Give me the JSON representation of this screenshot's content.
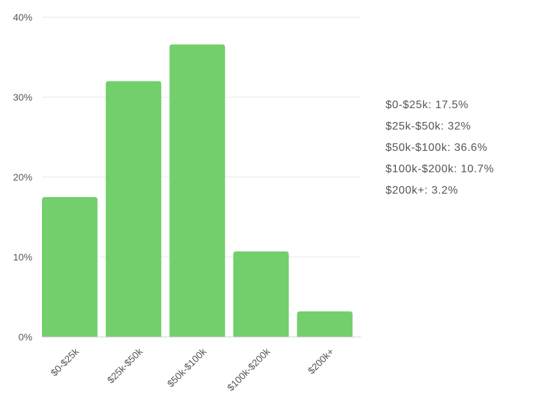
{
  "chart_data": {
    "type": "bar",
    "categories": [
      "$0-$25k",
      "$25k-$50k",
      "$50k-$100k",
      "$100k-$200k",
      "$200k+"
    ],
    "values": [
      17.5,
      32,
      36.6,
      10.7,
      3.2
    ],
    "ylim": [
      0,
      40
    ],
    "yticks": [
      "0%",
      "10%",
      "20%",
      "30%",
      "40%"
    ],
    "ytick_values": [
      0,
      10,
      20,
      30,
      40
    ],
    "bar_color": "#72cf6b",
    "grid": true,
    "legend_position": "right",
    "legend": [
      "$0-$25k: 17.5%",
      "$25k-$50k: 32%",
      "$50k-$100k: 36.6%",
      "$100k-$200k: 10.7%",
      "$200k+: 3.2%"
    ]
  }
}
